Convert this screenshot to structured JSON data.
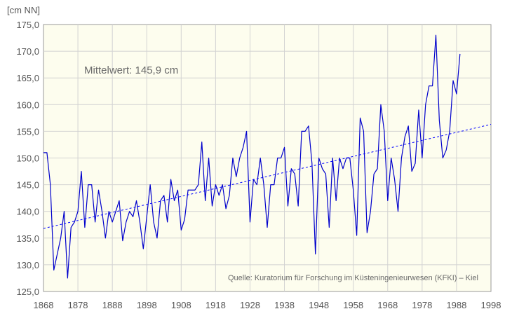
{
  "chart_data": {
    "type": "line",
    "unit_label": "[cm NN]",
    "annotation_mean": "Mittelwert: 145,9 cm",
    "source": "Quelle: Kuratorium für Forschung im Küsteningenieurwesen (KFKI) – Kiel",
    "xlim": [
      1868,
      1998
    ],
    "ylim": [
      125,
      175
    ],
    "x_ticks": [
      "1868",
      "1878",
      "1888",
      "1898",
      "1908",
      "1918",
      "1928",
      "1938",
      "1948",
      "1958",
      "1968",
      "1978",
      "1988",
      "1998"
    ],
    "y_ticks": [
      "125,0",
      "130,0",
      "135,0",
      "140,0",
      "145,0",
      "150,0",
      "155,0",
      "160,0",
      "165,0",
      "170,0",
      "175,0"
    ],
    "grid": true,
    "series": [
      {
        "color": "#0000cc",
        "x_start": 1868,
        "x_step": 1,
        "values": [
          151,
          151,
          145,
          129,
          132,
          135,
          140,
          127.5,
          137,
          138,
          140,
          147.5,
          137,
          145,
          145,
          138,
          144,
          140,
          135,
          140,
          138,
          140,
          142,
          134.5,
          138,
          140,
          139,
          142,
          138,
          133,
          139,
          145,
          138,
          135,
          142,
          143,
          138,
          146,
          142,
          144,
          136.5,
          138.5,
          144,
          144,
          144,
          145,
          153,
          142,
          150,
          141,
          145,
          143,
          145,
          140.5,
          143,
          150,
          146.5,
          150,
          152,
          155,
          138,
          146,
          145,
          150,
          145,
          137,
          145,
          145,
          150,
          150,
          152,
          141,
          148,
          147,
          141,
          155,
          155,
          156,
          149,
          132,
          150,
          148,
          147,
          137,
          150,
          142,
          150,
          148,
          150,
          150,
          144,
          135.5,
          157.5,
          155,
          136,
          140,
          147,
          148,
          160,
          155,
          142,
          150,
          146,
          140,
          150,
          154,
          156,
          147.5,
          149,
          159,
          150,
          160,
          163.5,
          163.5,
          173,
          157,
          150,
          151.5,
          155,
          164.5,
          162,
          169.5
        ]
      },
      {
        "style": "dashed-trend",
        "color": "#0000ff",
        "x": [
          1868,
          1998
        ],
        "values": [
          136.8,
          156.3
        ]
      }
    ]
  }
}
